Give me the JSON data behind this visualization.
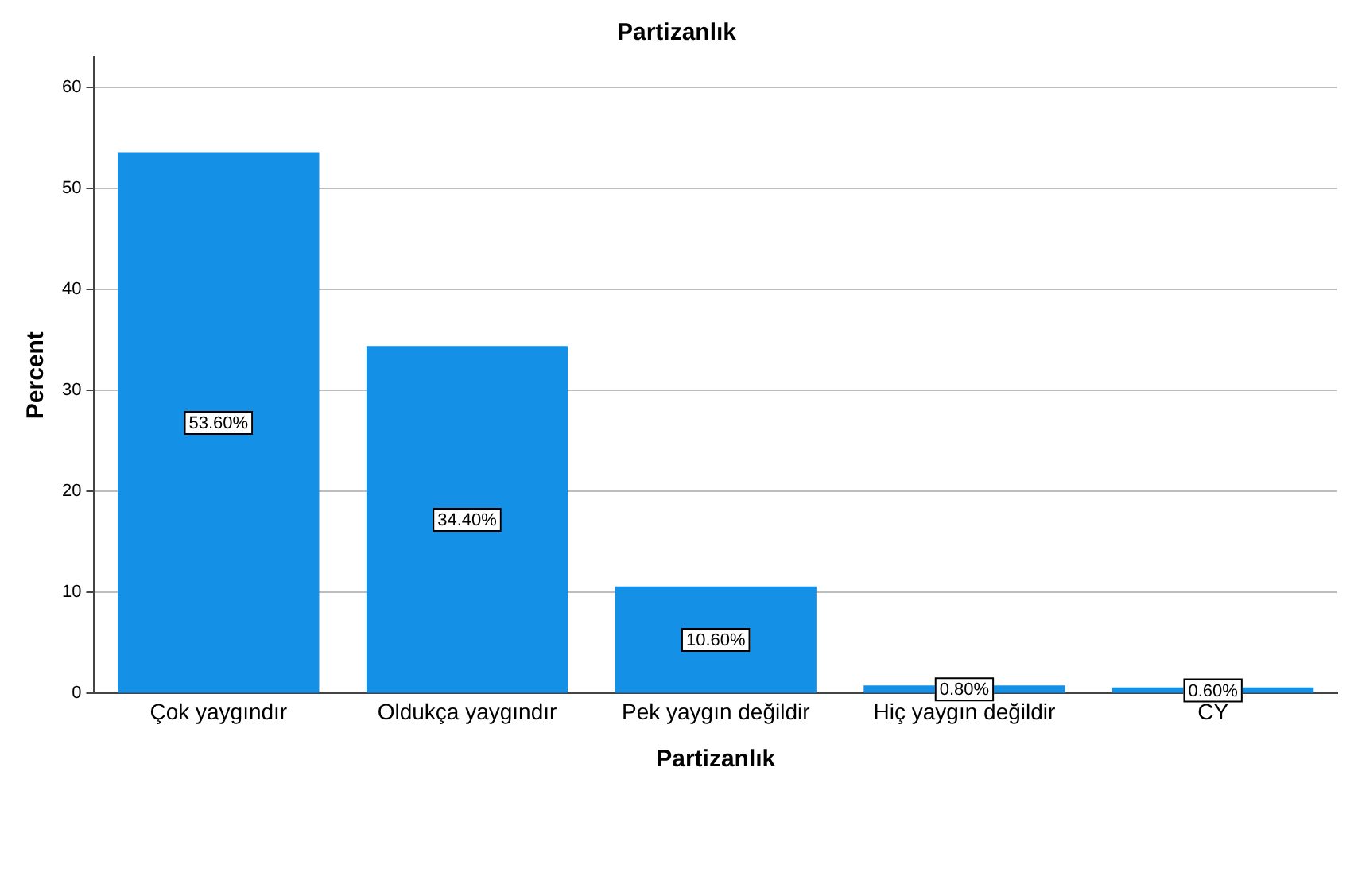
{
  "chart_data": {
    "type": "bar",
    "title": "Partizanlık",
    "xlabel": "Partizanlık",
    "ylabel": "Percent",
    "categories": [
      "Çok yaygındır",
      "Oldukça yaygındır",
      "Pek yaygın değildir",
      "Hiç yaygın değildir",
      "CY"
    ],
    "values": [
      53.6,
      34.4,
      10.6,
      0.8,
      0.6
    ],
    "value_labels": [
      "53.60%",
      "34.40%",
      "10.60%",
      "0.80%",
      "0.60%"
    ],
    "color": "#1490e6",
    "ylim": [
      0,
      63
    ],
    "yticks": [
      0,
      10,
      20,
      30,
      40,
      50,
      60
    ],
    "grid": "y",
    "legend": false
  }
}
